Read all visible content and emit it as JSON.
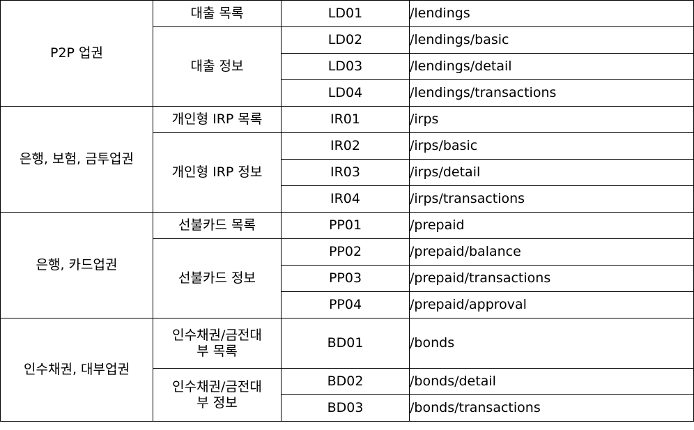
{
  "table": {
    "groups": [
      {
        "industry": "P2P 업권",
        "apis": [
          {
            "name": "대출 목록",
            "rows": [
              {
                "code": "LD01",
                "path": "/lendings"
              }
            ]
          },
          {
            "name": "대출 정보",
            "rows": [
              {
                "code": "LD02",
                "path": "/lendings/basic"
              },
              {
                "code": "LD03",
                "path": "/lendings/detail"
              },
              {
                "code": "LD04",
                "path": "/lendings/transactions"
              }
            ]
          }
        ]
      },
      {
        "industry": "은행, 보험, 금투업권",
        "apis": [
          {
            "name": "개인형 IRP 목록",
            "rows": [
              {
                "code": "IR01",
                "path": "/irps"
              }
            ]
          },
          {
            "name": "개인형 IRP 정보",
            "rows": [
              {
                "code": "IR02",
                "path": "/irps/basic"
              },
              {
                "code": "IR03",
                "path": "/irps/detail"
              },
              {
                "code": "IR04",
                "path": "/irps/transactions"
              }
            ]
          }
        ]
      },
      {
        "industry": "은행, 카드업권",
        "apis": [
          {
            "name": "선불카드 목록",
            "rows": [
              {
                "code": "PP01",
                "path": "/prepaid"
              }
            ]
          },
          {
            "name": "선불카드 정보",
            "rows": [
              {
                "code": "PP02",
                "path": "/prepaid/balance"
              },
              {
                "code": "PP03",
                "path": "/prepaid/transactions"
              },
              {
                "code": "PP04",
                "path": "/prepaid/approval"
              }
            ]
          }
        ]
      },
      {
        "industry": "인수채권, 대부업권",
        "apis": [
          {
            "name": "인수채권/금전대\n부 목록",
            "rows": [
              {
                "code": "BD01",
                "path": "/bonds"
              }
            ]
          },
          {
            "name": "인수채권/금전대\n부 정보",
            "rows": [
              {
                "code": "BD02",
                "path": "/bonds/detail"
              },
              {
                "code": "BD03",
                "path": "/bonds/transactions"
              }
            ]
          }
        ]
      }
    ]
  }
}
